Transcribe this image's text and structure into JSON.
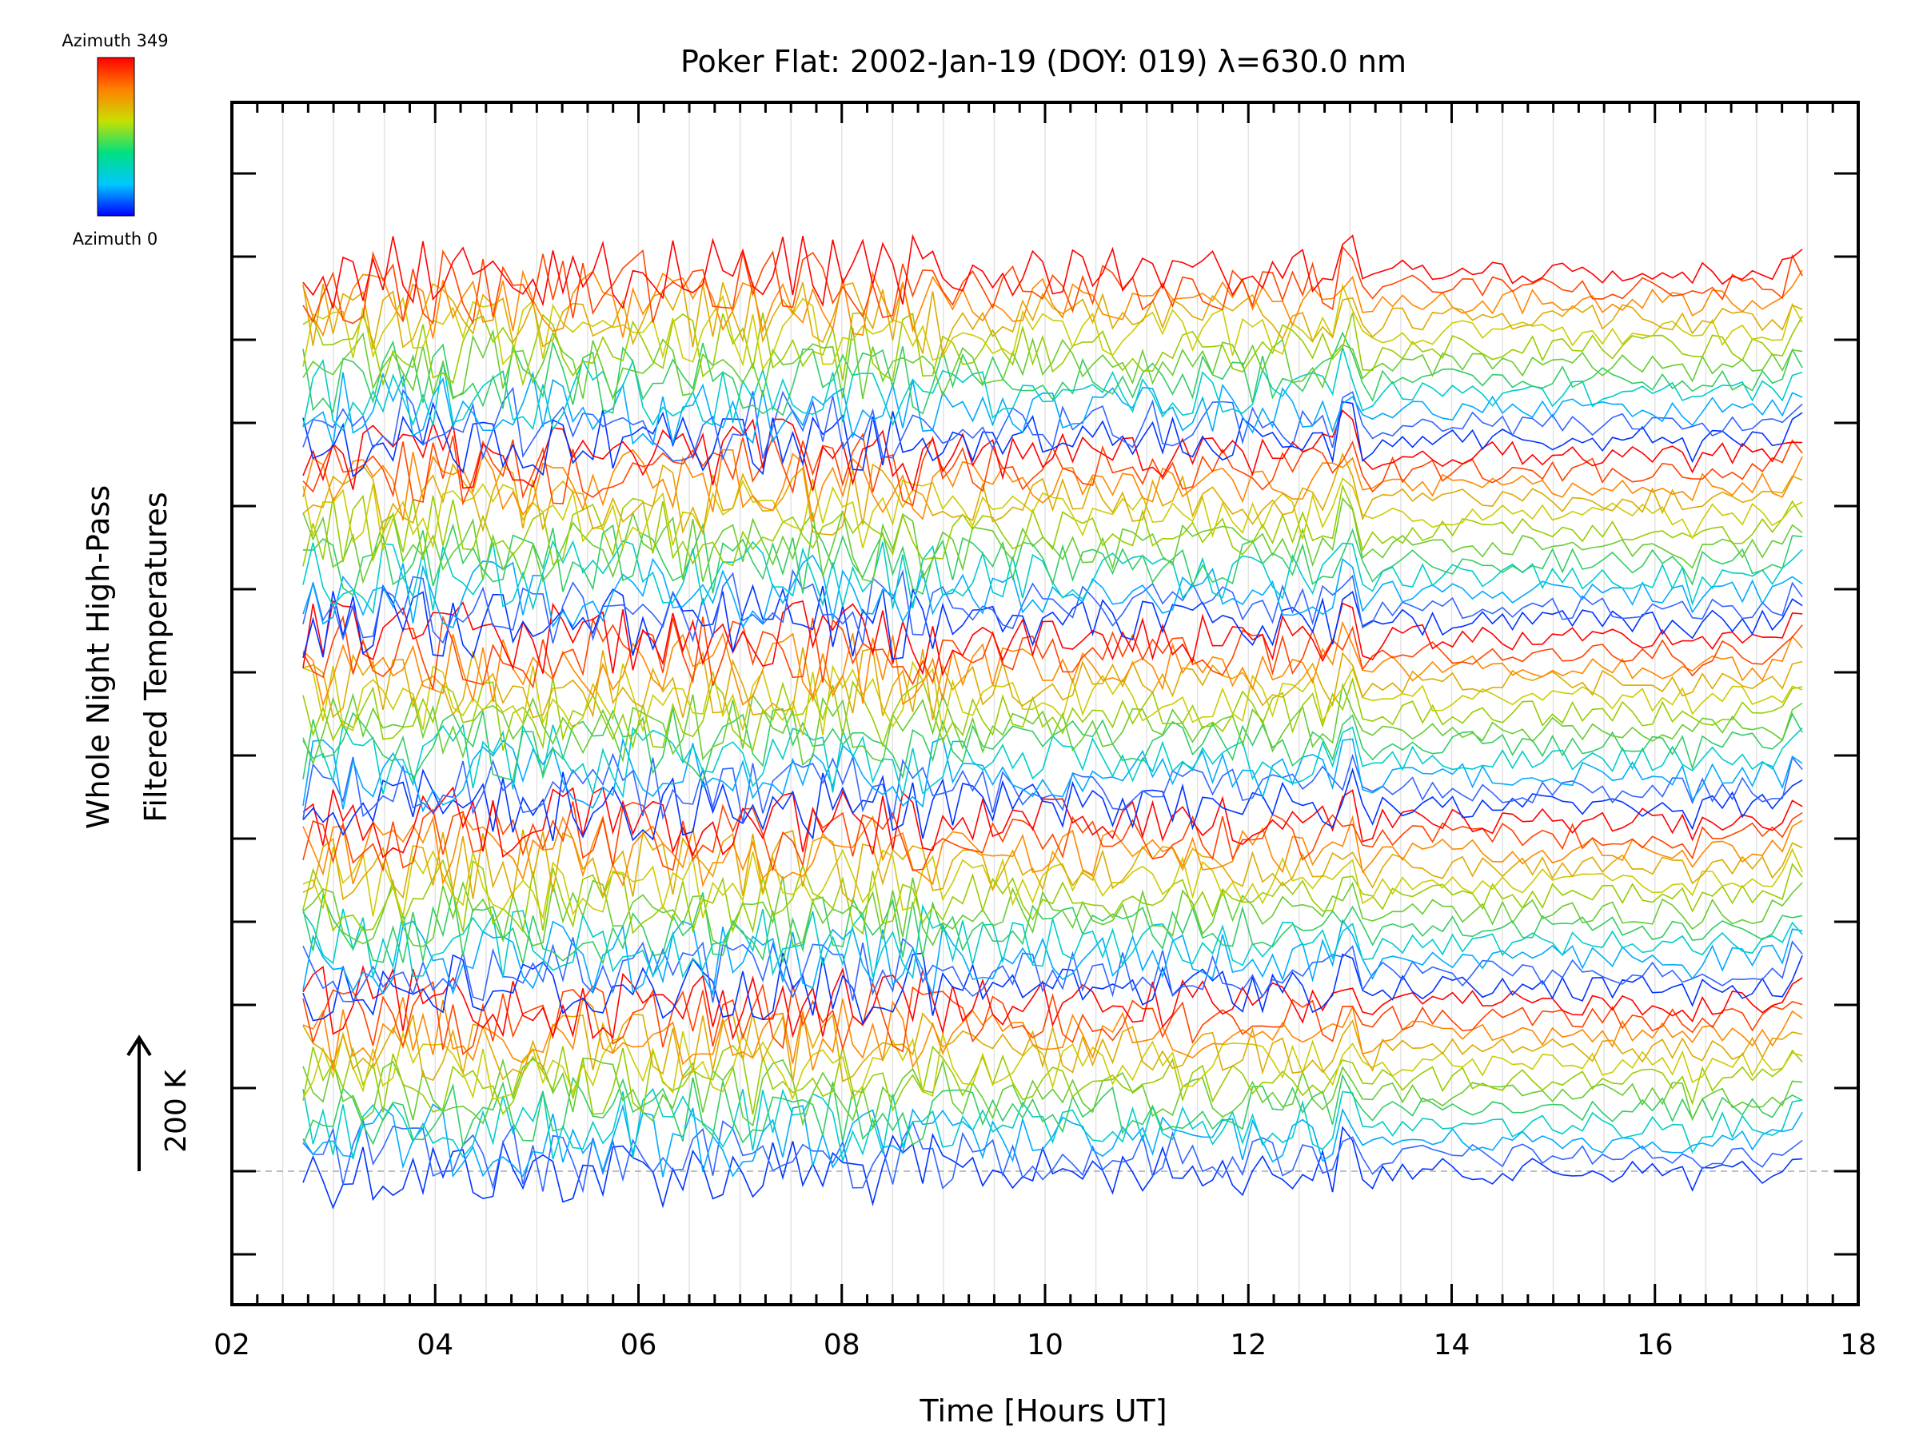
{
  "chart_data": {
    "type": "line",
    "title": "Poker Flat: 2002-Jan-19 (DOY: 019) λ=630.0 nm",
    "xlabel": "Time [Hours UT]",
    "ylabel_line1": "Whole Night High-Pass",
    "ylabel_line2": "Filtered Temperatures",
    "xlim": [
      2,
      18
    ],
    "x_tick_labels": [
      "02",
      "04",
      "06",
      "08",
      "10",
      "12",
      "14",
      "16",
      "18"
    ],
    "data_time_range": [
      2.7,
      17.45
    ],
    "colorbar": {
      "top_label": "Azimuth 349",
      "bottom_label": "Azimuth 0",
      "colors": [
        "#0000ff",
        "#00c8ff",
        "#00e080",
        "#c8e000",
        "#ff8000",
        "#ff0000"
      ]
    },
    "scale_bar_label": "200 K",
    "baseline_dashed": true,
    "vertical_gridlines": true,
    "series_count": 60,
    "series_note_colors": [
      "#0033ff",
      "#3366ff",
      "#00aaff",
      "#00cccc",
      "#33cc66",
      "#66cc33",
      "#99cc00",
      "#cccc00",
      "#ddaa00",
      "#ff8800",
      "#ff4400",
      "#ff0000"
    ]
  }
}
